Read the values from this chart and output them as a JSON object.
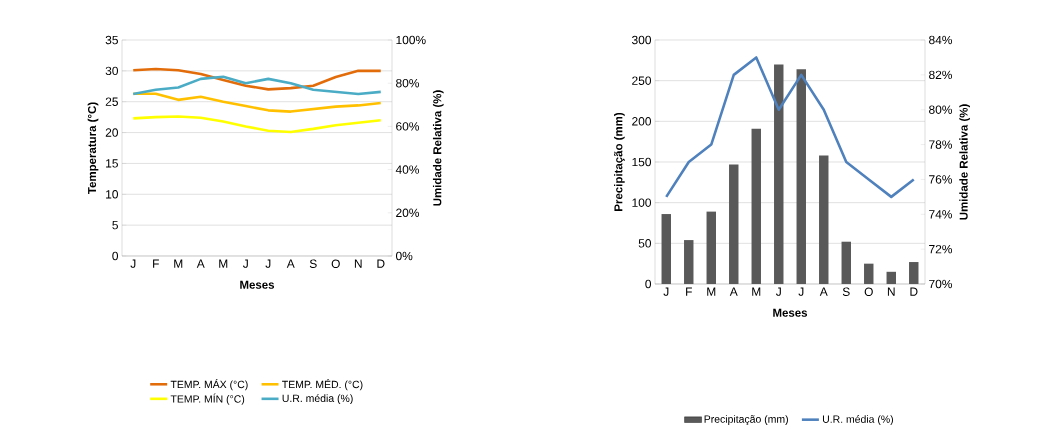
{
  "chart_data": [
    {
      "type": "line",
      "categories": [
        "J",
        "F",
        "M",
        "A",
        "M",
        "J",
        "J",
        "A",
        "S",
        "O",
        "N",
        "D"
      ],
      "xlabel": "Meses",
      "ylabel": "Temperatura (°C)",
      "y2label": "Umidade Relativa (%)",
      "ylim": [
        0,
        35
      ],
      "yticks": [
        0,
        5,
        10,
        15,
        20,
        25,
        30,
        35
      ],
      "y2lim": [
        0,
        100
      ],
      "y2ticks": [
        {
          "value": 0,
          "label": "0%"
        },
        {
          "value": 20,
          "label": "20%"
        },
        {
          "value": 40,
          "label": "40%"
        },
        {
          "value": 60,
          "label": "60%"
        },
        {
          "value": 80,
          "label": "80%"
        },
        {
          "value": 100,
          "label": "100%"
        }
      ],
      "grid": "y",
      "legend": "bottom",
      "series": [
        {
          "name": "TEMP. MÁX (°C)",
          "color": "#e36c0a",
          "values": [
            30.1,
            30.3,
            30.1,
            29.5,
            28.5,
            27.6,
            27.0,
            27.2,
            27.6,
            29.0,
            30.0,
            30.0
          ]
        },
        {
          "name": "TEMP. MÉD. (°C)",
          "color": "#ffc000",
          "values": [
            26.3,
            26.3,
            25.3,
            25.8,
            25.0,
            24.3,
            23.6,
            23.4,
            23.8,
            24.2,
            24.4,
            24.8
          ]
        },
        {
          "name": "TEMP. MÍN (°C)",
          "color": "#ffff00",
          "values": [
            22.3,
            22.5,
            22.6,
            22.4,
            21.8,
            21.0,
            20.3,
            20.1,
            20.6,
            21.2,
            21.6,
            22.0
          ]
        },
        {
          "name": "U.R. média (%)",
          "color": "#4bacc6",
          "axis": "y2",
          "values": [
            75,
            77,
            78,
            82,
            83,
            80,
            82,
            80,
            77,
            76,
            75,
            76
          ]
        }
      ]
    },
    {
      "type": "bar",
      "categories": [
        "J",
        "F",
        "M",
        "A",
        "M",
        "J",
        "J",
        "A",
        "S",
        "O",
        "N",
        "D"
      ],
      "xlabel": "Meses",
      "ylabel": "Precipitação (mm)",
      "y2label": "Umidade Relativa (%)",
      "ylim": [
        0,
        300
      ],
      "yticks": [
        0,
        50,
        100,
        150,
        200,
        250,
        300
      ],
      "y2lim": [
        70,
        84
      ],
      "y2ticks": [
        {
          "value": 70,
          "label": "70%"
        },
        {
          "value": 72,
          "label": "72%"
        },
        {
          "value": 74,
          "label": "74%"
        },
        {
          "value": 76,
          "label": "76%"
        },
        {
          "value": 78,
          "label": "78%"
        },
        {
          "value": 80,
          "label": "80%"
        },
        {
          "value": 82,
          "label": "82%"
        },
        {
          "value": 84,
          "label": "84%"
        }
      ],
      "grid": "y",
      "legend": "bottom",
      "series": [
        {
          "name": "Precipitação (mm)",
          "color": "#595959",
          "values": [
            86,
            54,
            89,
            147,
            191,
            270,
            264,
            158,
            52,
            25,
            15,
            27
          ]
        },
        {
          "name": "U.R. média (%)",
          "color": "#4f81bd",
          "type": "line",
          "axis": "y2",
          "values": [
            75,
            77,
            78,
            82,
            83,
            80,
            82,
            80,
            77,
            76,
            75,
            76
          ]
        }
      ]
    }
  ]
}
